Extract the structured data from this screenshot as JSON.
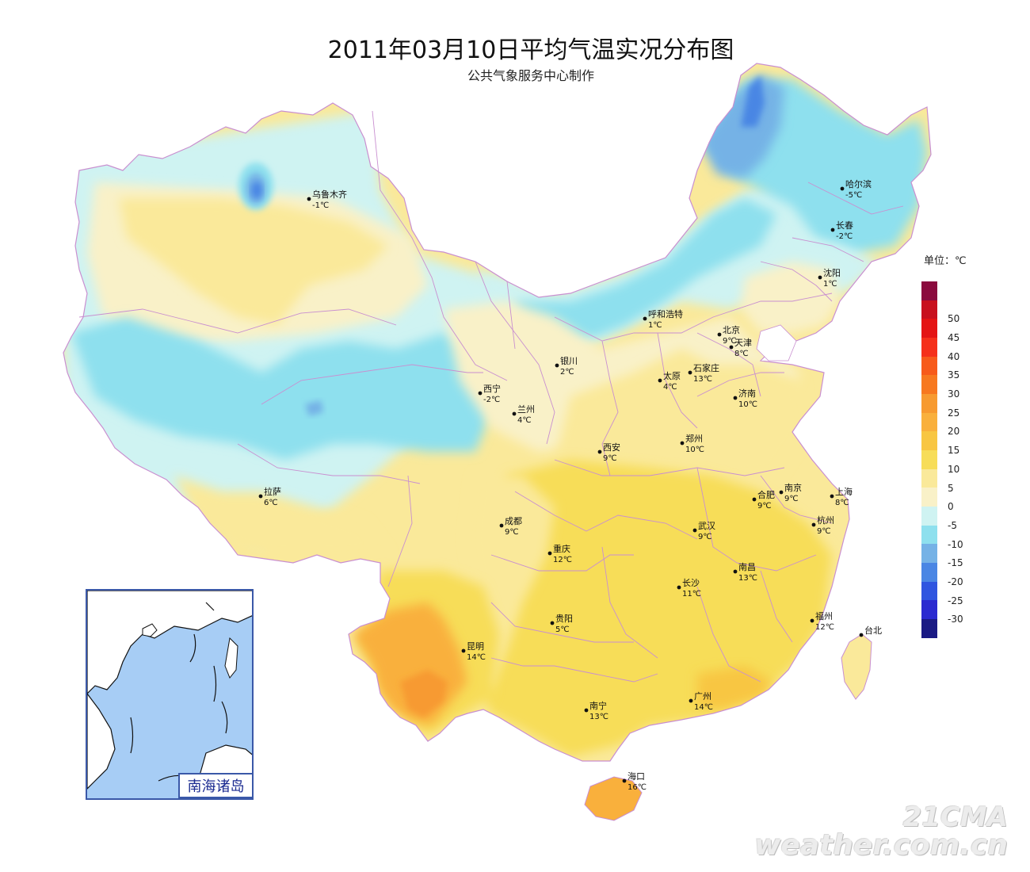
{
  "header": {
    "title": "2011年03月10日平均气温实况分布图",
    "subtitle": "公共气象服务中心制作"
  },
  "legend": {
    "title": "单位：℃",
    "swatches": [
      {
        "color": "#8b0a3e"
      },
      {
        "color": "#c8101e",
        "label": "50"
      },
      {
        "color": "#e41414",
        "label": "45"
      },
      {
        "color": "#f5301a",
        "label": "40"
      },
      {
        "color": "#f75a1a",
        "label": "35"
      },
      {
        "color": "#f7781f",
        "label": "30"
      },
      {
        "color": "#f79a30",
        "label": "25"
      },
      {
        "color": "#f9b03c",
        "label": "20"
      },
      {
        "color": "#f8c642",
        "label": "15"
      },
      {
        "color": "#f7dd58",
        "label": "10"
      },
      {
        "color": "#fae99a",
        "label": "5"
      },
      {
        "color": "#f9f1c8",
        "label": "0"
      },
      {
        "color": "#cff3f2",
        "label": "-5"
      },
      {
        "color": "#8ee0ee",
        "label": "-10"
      },
      {
        "color": "#75b2e6",
        "label": "-15"
      },
      {
        "color": "#4a86e4",
        "label": "-20"
      },
      {
        "color": "#2f55e0",
        "label": "-25"
      },
      {
        "color": "#2b2ad0",
        "label": "-30"
      },
      {
        "color": "#1a1a84"
      }
    ]
  },
  "cities": [
    {
      "name": "乌鲁木齐",
      "temp": "-1℃"
    },
    {
      "name": "哈尔滨",
      "temp": "-5℃"
    },
    {
      "name": "长春",
      "temp": "-2℃"
    },
    {
      "name": "沈阳",
      "temp": "1℃"
    },
    {
      "name": "呼和浩特",
      "temp": "1℃"
    },
    {
      "name": "北京",
      "temp": "9℃"
    },
    {
      "name": "天津",
      "temp": "8℃"
    },
    {
      "name": "石家庄",
      "temp": "13℃"
    },
    {
      "name": "太原",
      "temp": "4℃"
    },
    {
      "name": "银川",
      "temp": "2℃"
    },
    {
      "name": "西宁",
      "temp": "-2℃"
    },
    {
      "name": "兰州",
      "temp": "4℃"
    },
    {
      "name": "济南",
      "temp": "10℃"
    },
    {
      "name": "郑州",
      "temp": "10℃"
    },
    {
      "name": "西安",
      "temp": "9℃"
    },
    {
      "name": "合肥",
      "temp": "9℃"
    },
    {
      "name": "南京",
      "temp": "9℃"
    },
    {
      "name": "上海",
      "temp": "8℃"
    },
    {
      "name": "拉萨",
      "temp": "6℃"
    },
    {
      "name": "成都",
      "temp": "9℃"
    },
    {
      "name": "武汉",
      "temp": "9℃"
    },
    {
      "name": "杭州",
      "temp": "9℃"
    },
    {
      "name": "重庆",
      "temp": "12℃"
    },
    {
      "name": "南昌",
      "temp": "13℃"
    },
    {
      "name": "长沙",
      "temp": "11℃"
    },
    {
      "name": "贵阳",
      "temp": "5℃"
    },
    {
      "name": "福州",
      "temp": "12℃"
    },
    {
      "name": "台北",
      "temp": ""
    },
    {
      "name": "昆明",
      "temp": "14℃"
    },
    {
      "name": "南宁",
      "temp": "13℃"
    },
    {
      "name": "广州",
      "temp": "14℃"
    },
    {
      "name": "海口",
      "temp": "16℃"
    }
  ],
  "inset": {
    "label": "南海诸岛"
  },
  "watermark": {
    "line1": "21CMA",
    "line2": "weather.com.cn"
  }
}
